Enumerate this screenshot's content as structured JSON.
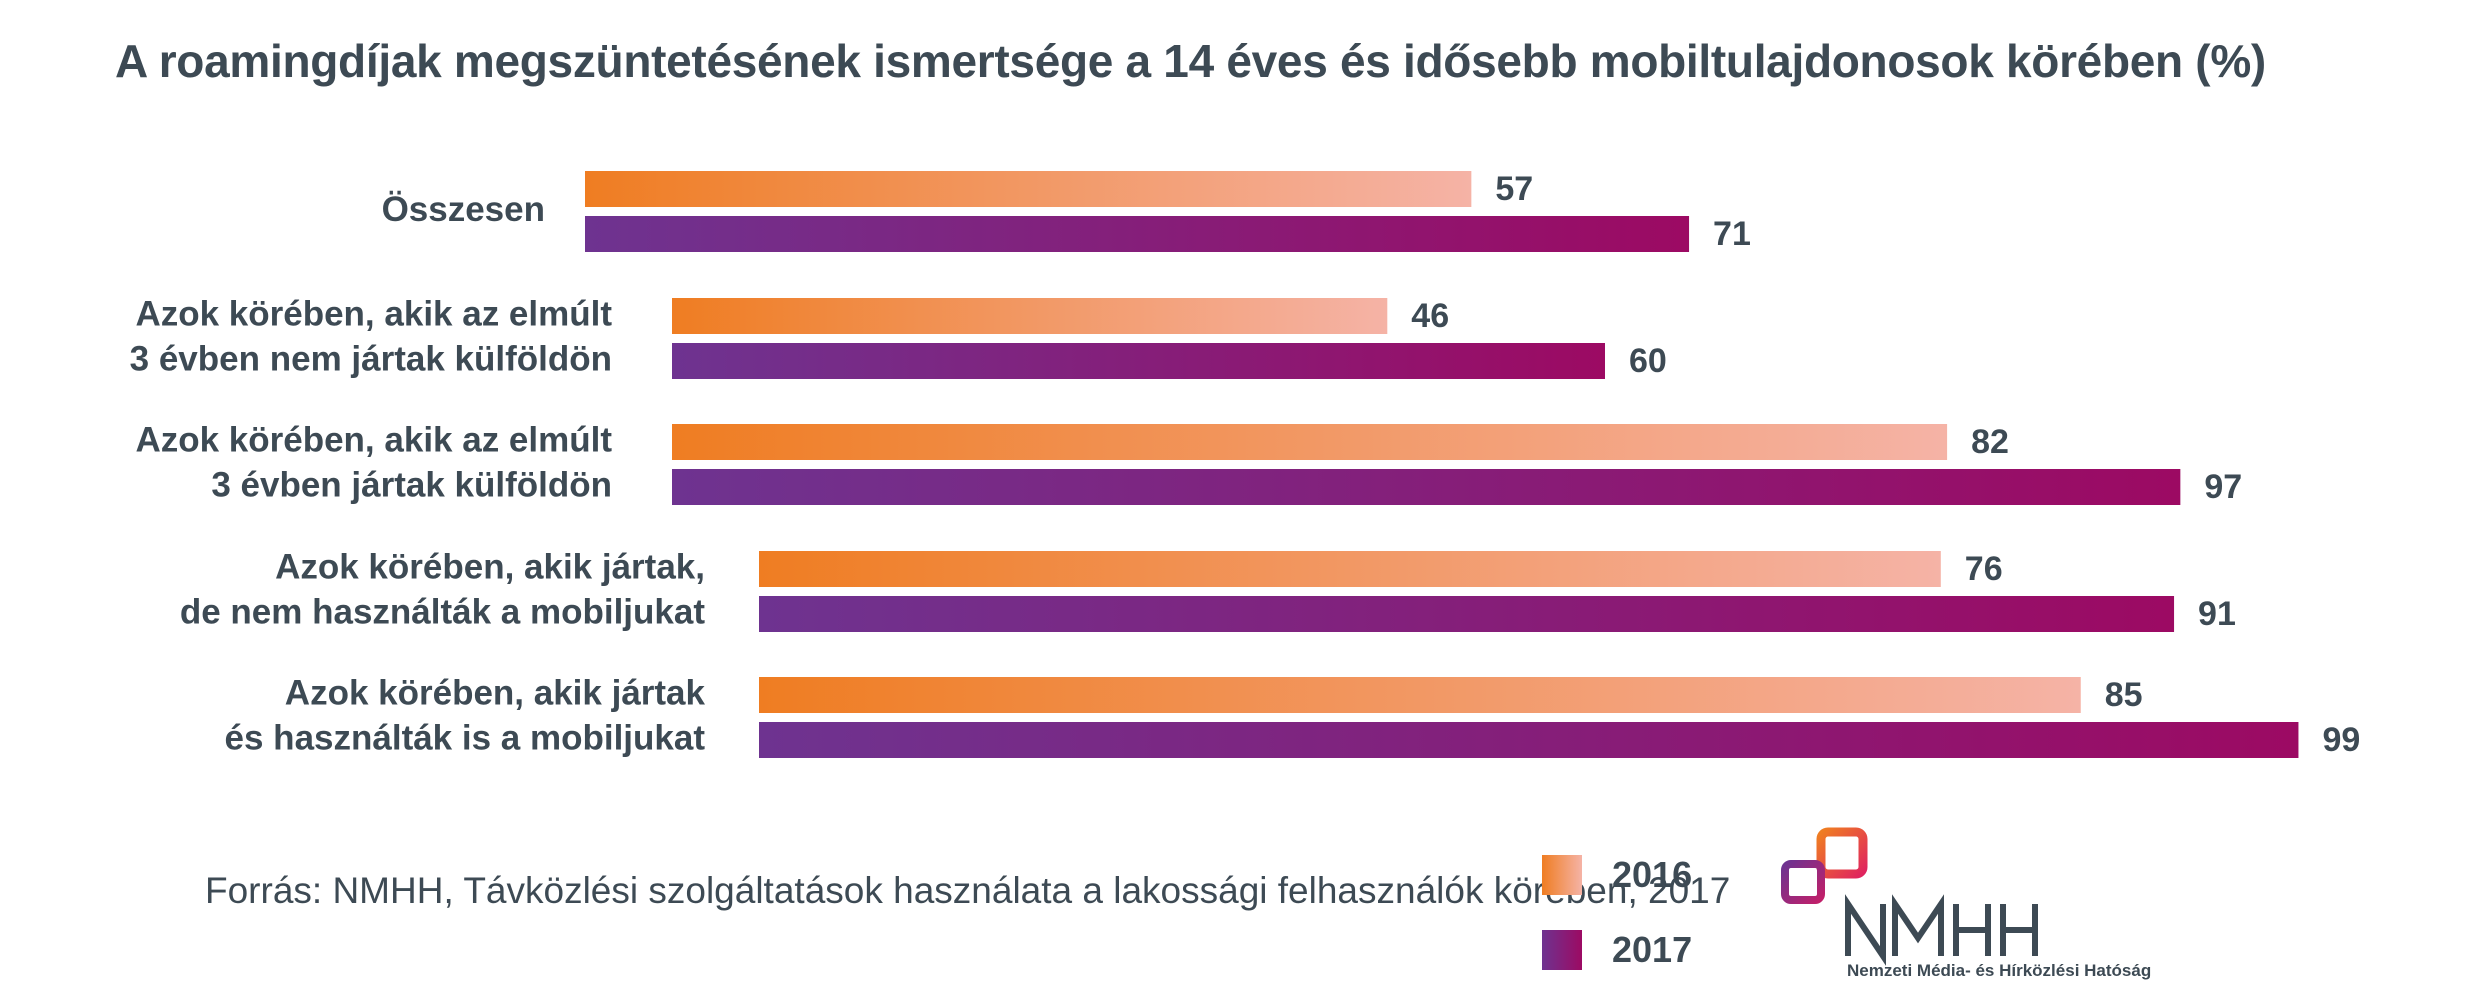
{
  "chart_data": {
    "type": "bar",
    "orientation": "horizontal",
    "title": "A roamingdíjak megszüntetésének ismertsége a 14 éves és idősebb mobiltulajdonosok körében (%)",
    "categories": [
      [
        "Összesen"
      ],
      [
        "Azok körében, akik az elmúlt",
        "3 évben nem jártak külföldön"
      ],
      [
        "Azok körében, akik az elmúlt",
        "3 évben jártak külföldön"
      ],
      [
        "Azok körében, akik jártak,",
        "de nem használták a mobiljukat"
      ],
      [
        "Azok körében, akik jártak",
        "és használták is a mobiljukat"
      ]
    ],
    "series": [
      {
        "name": "2016",
        "values": [
          57,
          46,
          82,
          76,
          85
        ],
        "color_start": "#ef7d22",
        "color_end": "#f5b3a6"
      },
      {
        "name": "2017",
        "values": [
          71,
          60,
          97,
          91,
          99
        ],
        "color_start": "#6e3390",
        "color_end": "#9c0a63"
      }
    ],
    "xlim": [
      0,
      100
    ],
    "legend": "bottom-center",
    "grid": false
  },
  "source": "Forrás: NMHH, Távközlési szolgáltatások használata a lakossági felhasználók körében, 2017",
  "logo": {
    "name": "nmhh-logo",
    "text": "Nemzeti Média- és Hírközlési Hatóság",
    "mark": "NMHH"
  }
}
